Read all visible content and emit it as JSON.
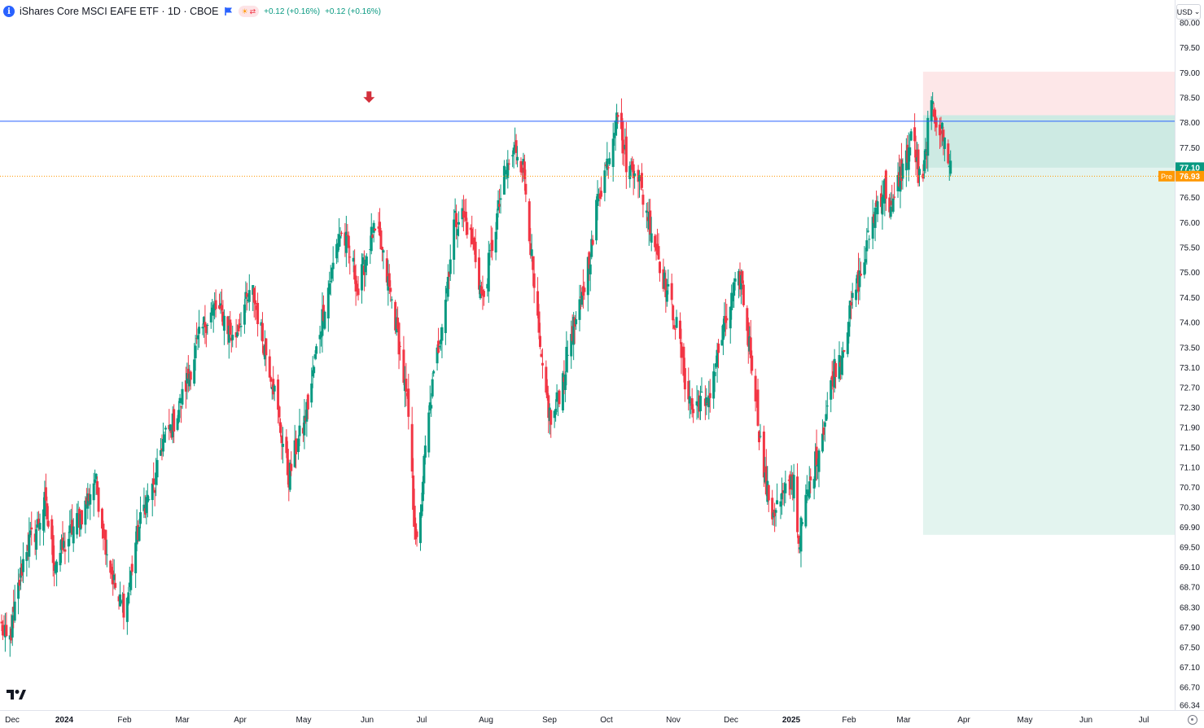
{
  "header": {
    "symbol_title": "iShares Core MSCI EAFE ETF · 1D · CBOE",
    "info_glyph": "i",
    "change_1": "+0.12 (+0.16%)",
    "change_2": "+0.12 (+0.16%)"
  },
  "currency_button": {
    "label": "USD",
    "arrow": "⌄"
  },
  "price_badges": {
    "last_price": "77.10",
    "pre_label": "Pre",
    "pre_price": "76.93"
  },
  "colors": {
    "up": "#089981",
    "down": "#f23645",
    "horizontal_line": "#2962ff",
    "pre_line": "#ff9800",
    "risk_zone": "#fde7e8",
    "reward_zone": "#e3f4ef",
    "reward_zone_dark": "#cdeae3",
    "arrow": "#d32f3b"
  },
  "icons": [
    "info-icon",
    "flag-icon",
    "sun-icon",
    "swap-icon",
    "tradingview-logo",
    "settings-icon",
    "arrow-down-icon"
  ],
  "chart_data": {
    "type": "candlestick",
    "title": "iShares Core MSCI EAFE ETF · 1D · CBOE",
    "ylim": [
      66.34,
      80.0
    ],
    "y_ticks": [
      "80.00",
      "79.50",
      "79.00",
      "78.50",
      "78.00",
      "77.50",
      "77.00",
      "76.50",
      "76.00",
      "75.50",
      "75.00",
      "74.50",
      "74.00",
      "73.50",
      "73.10",
      "72.70",
      "72.30",
      "71.90",
      "71.50",
      "71.10",
      "70.70",
      "70.30",
      "69.90",
      "69.50",
      "69.10",
      "68.70",
      "68.30",
      "67.90",
      "67.50",
      "67.10",
      "66.70",
      "66.34"
    ],
    "x_ticks": [
      "Dec",
      "2024",
      "Feb",
      "Mar",
      "Apr",
      "May",
      "Jun",
      "Jul",
      "Aug",
      "Sep",
      "Oct",
      "Nov",
      "Dec",
      "2025",
      "Feb",
      "Mar",
      "Apr",
      "May",
      "Jun",
      "Jul"
    ],
    "x_tick_bold": [
      "2024",
      "2025"
    ],
    "horizontal_line": 78.03,
    "pre_market_price": 76.93,
    "last_price": 77.1,
    "position_tool": {
      "side": "short",
      "entry": 78.15,
      "stop": 79.02,
      "target": 69.75,
      "current": 77.1
    },
    "arrow_signal": {
      "direction": "down",
      "at_price": 78.3,
      "date_index": 307
    },
    "series": [
      {
        "name": "",
        "waypoints": [
          [
            0,
            67.9
          ],
          [
            6,
            67.5
          ],
          [
            12,
            68.4
          ],
          [
            20,
            69.5
          ],
          [
            28,
            69.8
          ],
          [
            36,
            70.4
          ],
          [
            44,
            69.2
          ],
          [
            52,
            69.5
          ],
          [
            60,
            69.9
          ],
          [
            68,
            70.2
          ],
          [
            78,
            70.9
          ],
          [
            84,
            70.0
          ],
          [
            90,
            69.2
          ],
          [
            98,
            68.4
          ],
          [
            104,
            68.3
          ],
          [
            112,
            69.6
          ],
          [
            120,
            70.4
          ],
          [
            128,
            70.7
          ],
          [
            134,
            71.6
          ],
          [
            142,
            71.9
          ],
          [
            150,
            72.4
          ],
          [
            158,
            73.1
          ],
          [
            164,
            73.6
          ],
          [
            170,
            74.0
          ],
          [
            178,
            74.3
          ],
          [
            186,
            74.1
          ],
          [
            194,
            73.6
          ],
          [
            202,
            74.3
          ],
          [
            210,
            74.6
          ],
          [
            218,
            73.7
          ],
          [
            226,
            72.9
          ],
          [
            232,
            72.0
          ],
          [
            240,
            70.9
          ],
          [
            246,
            71.5
          ],
          [
            252,
            71.9
          ],
          [
            258,
            72.6
          ],
          [
            264,
            73.6
          ],
          [
            270,
            74.4
          ],
          [
            276,
            75.0
          ],
          [
            282,
            75.8
          ],
          [
            288,
            75.6
          ],
          [
            294,
            75.1
          ],
          [
            298,
            74.6
          ],
          [
            304,
            75.3
          ],
          [
            310,
            75.8
          ],
          [
            316,
            75.6
          ],
          [
            322,
            74.9
          ],
          [
            328,
            74.2
          ],
          [
            334,
            73.3
          ],
          [
            340,
            72.1
          ],
          [
            344,
            70.4
          ],
          [
            348,
            69.2
          ],
          [
            352,
            70.9
          ],
          [
            356,
            71.9
          ],
          [
            360,
            72.7
          ],
          [
            366,
            73.7
          ],
          [
            372,
            74.7
          ],
          [
            378,
            76.0
          ],
          [
            384,
            76.2
          ],
          [
            390,
            75.9
          ],
          [
            396,
            75.3
          ],
          [
            402,
            74.4
          ],
          [
            408,
            75.3
          ],
          [
            414,
            76.1
          ],
          [
            420,
            76.9
          ],
          [
            426,
            77.3
          ],
          [
            430,
            77.5
          ],
          [
            436,
            77.1
          ],
          [
            440,
            76.2
          ],
          [
            444,
            74.9
          ],
          [
            448,
            73.9
          ],
          [
            452,
            72.9
          ],
          [
            456,
            72.4
          ],
          [
            460,
            71.9
          ],
          [
            464,
            72.4
          ],
          [
            470,
            73.0
          ],
          [
            476,
            73.8
          ],
          [
            482,
            74.1
          ],
          [
            486,
            74.6
          ],
          [
            490,
            75.2
          ],
          [
            494,
            75.6
          ],
          [
            498,
            76.5
          ],
          [
            502,
            76.8
          ],
          [
            506,
            77.2
          ],
          [
            510,
            77.6
          ],
          [
            514,
            78.4
          ],
          [
            518,
            77.7
          ],
          [
            524,
            77.0
          ],
          [
            530,
            77.2
          ],
          [
            536,
            76.5
          ],
          [
            542,
            76.0
          ],
          [
            548,
            75.4
          ],
          [
            554,
            74.8
          ],
          [
            560,
            74.3
          ],
          [
            566,
            73.7
          ],
          [
            572,
            72.7
          ],
          [
            578,
            72.2
          ],
          [
            584,
            72.5
          ],
          [
            588,
            72.2
          ],
          [
            594,
            72.9
          ],
          [
            600,
            73.5
          ],
          [
            606,
            74.1
          ],
          [
            612,
            74.6
          ],
          [
            618,
            74.9
          ],
          [
            622,
            74.0
          ],
          [
            628,
            73.1
          ],
          [
            634,
            71.6
          ],
          [
            638,
            70.8
          ],
          [
            644,
            70.2
          ],
          [
            650,
            70.4
          ],
          [
            656,
            70.6
          ],
          [
            662,
            70.9
          ],
          [
            666,
            69.6
          ],
          [
            672,
            70.4
          ],
          [
            678,
            71.0
          ],
          [
            684,
            71.6
          ],
          [
            690,
            72.3
          ],
          [
            696,
            73.1
          ],
          [
            702,
            73.4
          ],
          [
            708,
            74.1
          ],
          [
            714,
            74.7
          ],
          [
            720,
            75.1
          ],
          [
            726,
            75.9
          ],
          [
            732,
            76.4
          ],
          [
            738,
            76.7
          ],
          [
            744,
            76.2
          ],
          [
            750,
            76.9
          ],
          [
            756,
            77.3
          ],
          [
            762,
            77.8
          ],
          [
            766,
            76.9
          ],
          [
            770,
            76.8
          ],
          [
            774,
            77.9
          ],
          [
            778,
            78.3
          ],
          [
            782,
            78.0
          ],
          [
            786,
            77.8
          ],
          [
            790,
            77.4
          ],
          [
            794,
            77.1
          ]
        ]
      }
    ]
  }
}
